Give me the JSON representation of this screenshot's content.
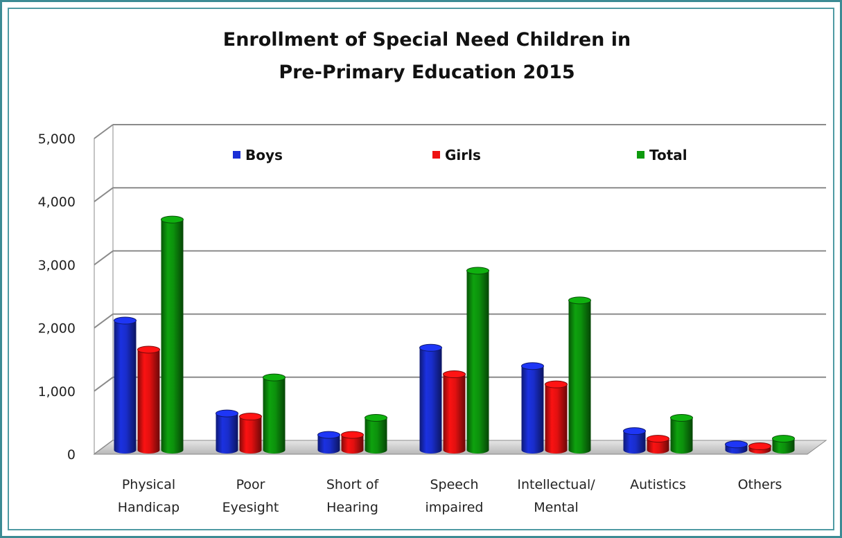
{
  "chart_data": {
    "type": "bar",
    "title": "Enrollment of Special Need Children in Pre-Primary Education 2015",
    "title_lines": [
      "Enrollment of Special Need Children in",
      "Pre-Primary Education 2015"
    ],
    "categories": [
      [
        "Physical",
        "Handicap"
      ],
      [
        "Poor",
        "Eyesight"
      ],
      [
        "Short of",
        "Hearing"
      ],
      [
        "Speech",
        "impaired"
      ],
      [
        "Intellectual/",
        "Mental"
      ],
      [
        "Autistics"
      ],
      [
        "Others"
      ]
    ],
    "series": [
      {
        "name": "Boys",
        "values": [
          2050,
          580,
          240,
          1620,
          1330,
          300,
          90
        ]
      },
      {
        "name": "Girls",
        "values": [
          1590,
          530,
          240,
          1200,
          1040,
          180,
          60
        ]
      },
      {
        "name": "Total",
        "values": [
          3650,
          1150,
          510,
          2840,
          2370,
          510,
          180
        ]
      }
    ],
    "colors": {
      "Boys": "#1a2fd6",
      "Girls": "#ee1111",
      "Total": "#0d9a0d"
    },
    "ylim": [
      0,
      5000
    ],
    "yticks": [
      "0",
      "1,000",
      "2,000",
      "3,000",
      "4,000",
      "5,000"
    ],
    "ytick_values": [
      0,
      1000,
      2000,
      3000,
      4000,
      5000
    ],
    "grid": true,
    "legend_position": "top"
  }
}
